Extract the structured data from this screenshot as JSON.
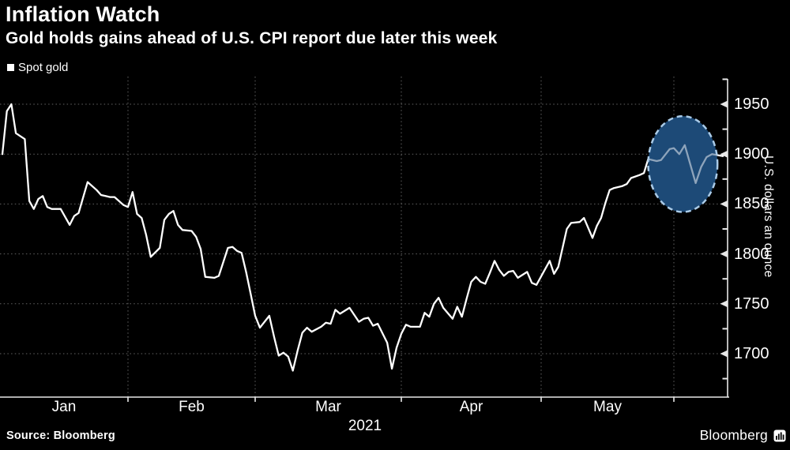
{
  "header": {
    "title": "Inflation Watch",
    "subtitle": "Gold holds gains ahead of U.S. CPI report due later this week"
  },
  "legend": {
    "label": "Spot gold",
    "marker_color": "#ffffff"
  },
  "footer": {
    "source": "Source: Bloomberg",
    "brand": "Bloomberg"
  },
  "colors": {
    "background": "#000000",
    "line": "#ffffff",
    "grid": "#636363",
    "axis": "#e8e8e8",
    "highlight_fill": "#1d4a77",
    "highlight_border": "#aacbe8"
  },
  "chart_data": {
    "type": "line",
    "title": "Inflation Watch",
    "subtitle": "Gold holds gains ahead of U.S. CPI report due later this week",
    "series_name": "Spot gold",
    "xlabel": "",
    "ylabel": "U.S. dollars an ounce",
    "year_label": "2021",
    "x_month_labels": [
      "Jan",
      "Feb",
      "Mar",
      "Apr",
      "May"
    ],
    "month_gridlines": [
      "Feb",
      "Mar",
      "Apr",
      "May",
      "Jun"
    ],
    "y_ticks": [
      1950,
      1900,
      1850,
      1800,
      1750,
      1700
    ],
    "y_minor_ticks": [
      1975,
      1925,
      1875,
      1825,
      1775,
      1725,
      1675
    ],
    "ylim": [
      1657,
      1976
    ],
    "grid": "dotted",
    "legend_position": "top-left",
    "annotation": {
      "shape": "dashed-ellipse-highlight",
      "center_date": "2021-06-02",
      "center_value": 1890,
      "radius_days": 7,
      "radius_value": 48
    },
    "points": [
      [
        "2021-01-04",
        1900
      ],
      [
        "2021-01-05",
        1943
      ],
      [
        "2021-01-06",
        1950
      ],
      [
        "2021-01-07",
        1921
      ],
      [
        "2021-01-08",
        1918
      ],
      [
        "2021-01-09",
        1915
      ],
      [
        "2021-01-10",
        1853
      ],
      [
        "2021-01-11",
        1845
      ],
      [
        "2021-01-12",
        1855
      ],
      [
        "2021-01-13",
        1858
      ],
      [
        "2021-01-14",
        1847
      ],
      [
        "2021-01-15",
        1845
      ],
      [
        "2021-01-17",
        1845
      ],
      [
        "2021-01-19",
        1829
      ],
      [
        "2021-01-20",
        1838
      ],
      [
        "2021-01-21",
        1841
      ],
      [
        "2021-01-23",
        1872
      ],
      [
        "2021-01-25",
        1864
      ],
      [
        "2021-01-26",
        1859
      ],
      [
        "2021-01-27",
        1858
      ],
      [
        "2021-01-28",
        1857
      ],
      [
        "2021-01-29",
        1857
      ],
      [
        "2021-01-31",
        1849
      ],
      [
        "2021-02-01",
        1847
      ],
      [
        "2021-02-02",
        1862
      ],
      [
        "2021-02-03",
        1840
      ],
      [
        "2021-02-04",
        1836
      ],
      [
        "2021-02-05",
        1819
      ],
      [
        "2021-02-06",
        1797
      ],
      [
        "2021-02-08",
        1806
      ],
      [
        "2021-02-09",
        1834
      ],
      [
        "2021-02-10",
        1840
      ],
      [
        "2021-02-11",
        1843
      ],
      [
        "2021-02-12",
        1829
      ],
      [
        "2021-02-13",
        1824
      ],
      [
        "2021-02-15",
        1823
      ],
      [
        "2021-02-16",
        1817
      ],
      [
        "2021-02-17",
        1805
      ],
      [
        "2021-02-18",
        1777
      ],
      [
        "2021-02-20",
        1776
      ],
      [
        "2021-02-21",
        1778
      ],
      [
        "2021-02-23",
        1806
      ],
      [
        "2021-02-24",
        1807
      ],
      [
        "2021-02-25",
        1803
      ],
      [
        "2021-02-26",
        1801
      ],
      [
        "2021-02-27",
        1782
      ],
      [
        "2021-02-28",
        1760
      ],
      [
        "2021-03-01",
        1738
      ],
      [
        "2021-03-02",
        1726
      ],
      [
        "2021-03-04",
        1738
      ],
      [
        "2021-03-05",
        1717
      ],
      [
        "2021-03-06",
        1698
      ],
      [
        "2021-03-07",
        1701
      ],
      [
        "2021-03-08",
        1697
      ],
      [
        "2021-03-09",
        1683
      ],
      [
        "2021-03-10",
        1703
      ],
      [
        "2021-03-11",
        1721
      ],
      [
        "2021-03-12",
        1726
      ],
      [
        "2021-03-13",
        1722
      ],
      [
        "2021-03-15",
        1727
      ],
      [
        "2021-03-16",
        1731
      ],
      [
        "2021-03-17",
        1730
      ],
      [
        "2021-03-18",
        1744
      ],
      [
        "2021-03-19",
        1740
      ],
      [
        "2021-03-21",
        1746
      ],
      [
        "2021-03-23",
        1732
      ],
      [
        "2021-03-24",
        1735
      ],
      [
        "2021-03-25",
        1736
      ],
      [
        "2021-03-26",
        1728
      ],
      [
        "2021-03-27",
        1730
      ],
      [
        "2021-03-29",
        1711
      ],
      [
        "2021-03-30",
        1685
      ],
      [
        "2021-03-31",
        1706
      ],
      [
        "2021-04-01",
        1720
      ],
      [
        "2021-04-02",
        1729
      ],
      [
        "2021-04-03",
        1727
      ],
      [
        "2021-04-05",
        1727
      ],
      [
        "2021-04-06",
        1741
      ],
      [
        "2021-04-07",
        1737
      ],
      [
        "2021-04-08",
        1750
      ],
      [
        "2021-04-09",
        1756
      ],
      [
        "2021-04-10",
        1746
      ],
      [
        "2021-04-12",
        1735
      ],
      [
        "2021-04-13",
        1747
      ],
      [
        "2021-04-14",
        1737
      ],
      [
        "2021-04-15",
        1755
      ],
      [
        "2021-04-16",
        1772
      ],
      [
        "2021-04-17",
        1777
      ],
      [
        "2021-04-18",
        1772
      ],
      [
        "2021-04-19",
        1770
      ],
      [
        "2021-04-20",
        1781
      ],
      [
        "2021-04-21",
        1793
      ],
      [
        "2021-04-22",
        1784
      ],
      [
        "2021-04-23",
        1778
      ],
      [
        "2021-04-24",
        1782
      ],
      [
        "2021-04-25",
        1783
      ],
      [
        "2021-04-26",
        1776
      ],
      [
        "2021-04-27",
        1779
      ],
      [
        "2021-04-28",
        1782
      ],
      [
        "2021-04-29",
        1771
      ],
      [
        "2021-04-30",
        1769
      ],
      [
        "2021-05-03",
        1793
      ],
      [
        "2021-05-04",
        1780
      ],
      [
        "2021-05-05",
        1787
      ],
      [
        "2021-05-06",
        1806
      ],
      [
        "2021-05-07",
        1825
      ],
      [
        "2021-05-08",
        1831
      ],
      [
        "2021-05-10",
        1832
      ],
      [
        "2021-05-11",
        1836
      ],
      [
        "2021-05-13",
        1816
      ],
      [
        "2021-05-14",
        1828
      ],
      [
        "2021-05-15",
        1836
      ],
      [
        "2021-05-16",
        1851
      ],
      [
        "2021-05-17",
        1864
      ],
      [
        "2021-05-18",
        1866
      ],
      [
        "2021-05-20",
        1868
      ],
      [
        "2021-05-21",
        1870
      ],
      [
        "2021-05-22",
        1876
      ],
      [
        "2021-05-24",
        1879
      ],
      [
        "2021-05-25",
        1881
      ],
      [
        "2021-05-26",
        1895
      ],
      [
        "2021-05-28",
        1893
      ],
      [
        "2021-05-29",
        1894
      ],
      [
        "2021-05-31",
        1905
      ],
      [
        "2021-06-01",
        1906
      ],
      [
        "2021-06-02",
        1900
      ],
      [
        "2021-06-03",
        1909
      ],
      [
        "2021-06-05",
        1871
      ],
      [
        "2021-06-06",
        1887
      ],
      [
        "2021-06-07",
        1897
      ],
      [
        "2021-06-08",
        1900
      ],
      [
        "2021-06-10",
        1898
      ]
    ]
  }
}
